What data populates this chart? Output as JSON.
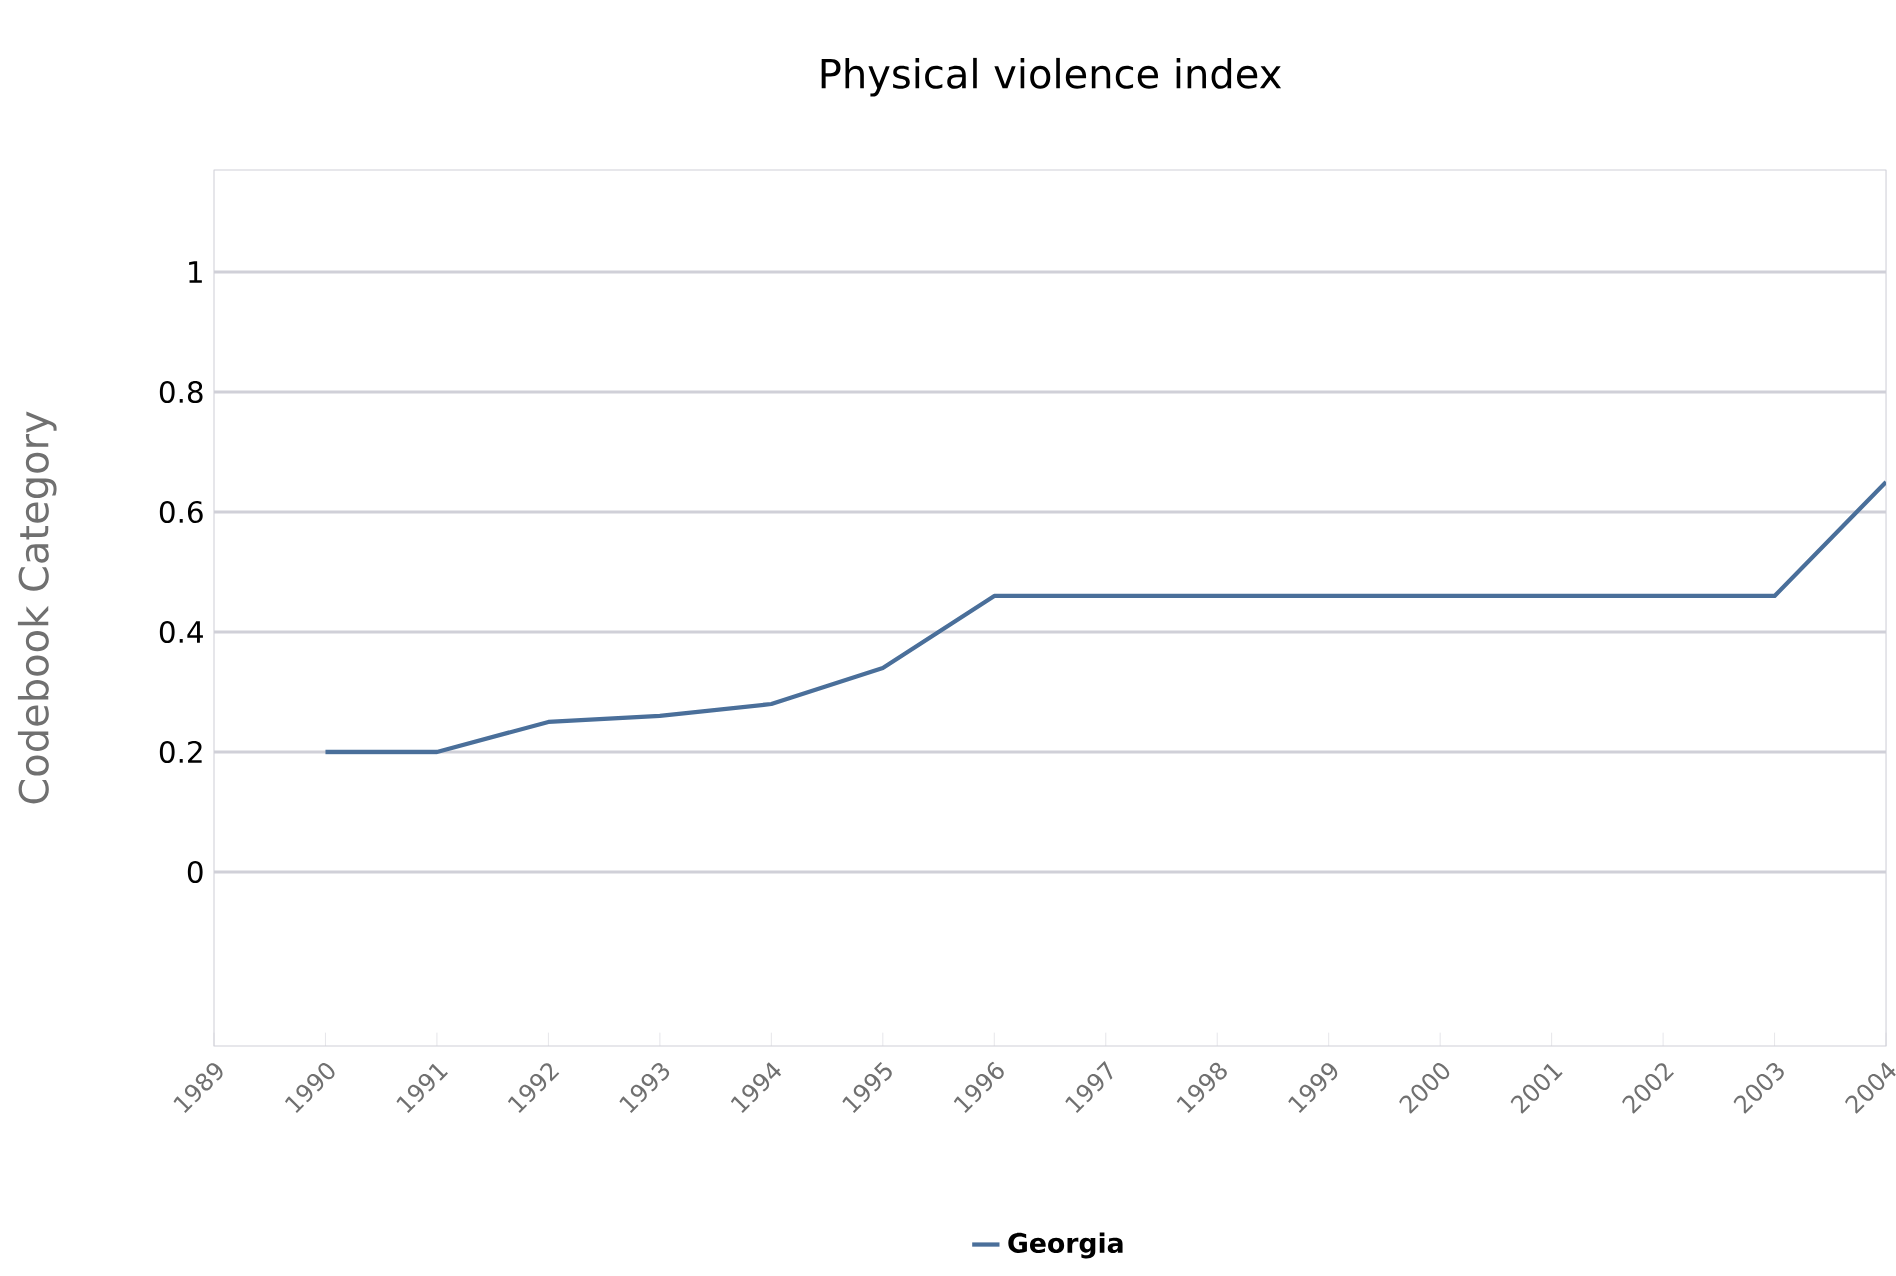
{
  "chart_data": {
    "type": "line",
    "title": "Physical violence index",
    "ylabel": "Codebook Category",
    "x": [
      1990,
      1991,
      1992,
      1993,
      1994,
      1995,
      1996,
      1997,
      1998,
      1999,
      2000,
      2001,
      2002,
      2003,
      2004
    ],
    "series": [
      {
        "name": "Georgia",
        "color": "#4a6f9a",
        "values": [
          0.2,
          0.2,
          0.25,
          0.26,
          0.28,
          0.34,
          0.46,
          0.46,
          0.46,
          0.46,
          0.46,
          0.46,
          0.46,
          0.46,
          0.65
        ]
      }
    ],
    "xlim": [
      1989,
      2004
    ],
    "xticks": [
      1989,
      1990,
      1991,
      1992,
      1993,
      1994,
      1995,
      1996,
      1997,
      1998,
      1999,
      2000,
      2001,
      2002,
      2003,
      2004
    ],
    "ylim": [
      -0.29,
      1.17
    ],
    "yticks": [
      0,
      0.2,
      0.4,
      0.6,
      0.8,
      1
    ],
    "grid": "y",
    "legend": "bottom",
    "marker": "none",
    "line_style": "solid"
  }
}
